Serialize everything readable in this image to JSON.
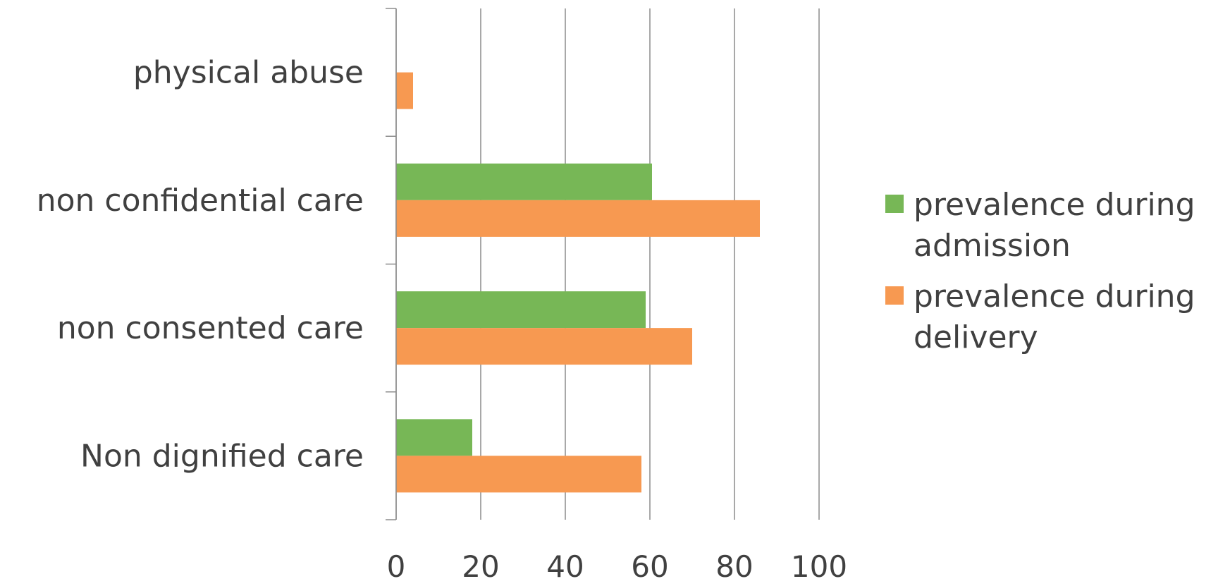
{
  "chart_data": {
    "type": "bar",
    "orientation": "horizontal",
    "categories": [
      "Non dignified care",
      "non consented care",
      "non confidential care",
      "physical abuse"
    ],
    "series": [
      {
        "name": "prevalence during admission",
        "color": "#77b756",
        "values": [
          18,
          59,
          60.5,
          null
        ]
      },
      {
        "name": "prevalence during delivery",
        "color": "#f79951",
        "values": [
          58,
          70,
          86,
          4
        ]
      }
    ],
    "xlim": [
      0,
      100
    ],
    "x_ticks": [
      "0",
      "20",
      "40",
      "60",
      "80",
      "100"
    ],
    "grid": "vertical",
    "legend_position": "right",
    "title": "",
    "xlabel": "",
    "ylabel": ""
  }
}
